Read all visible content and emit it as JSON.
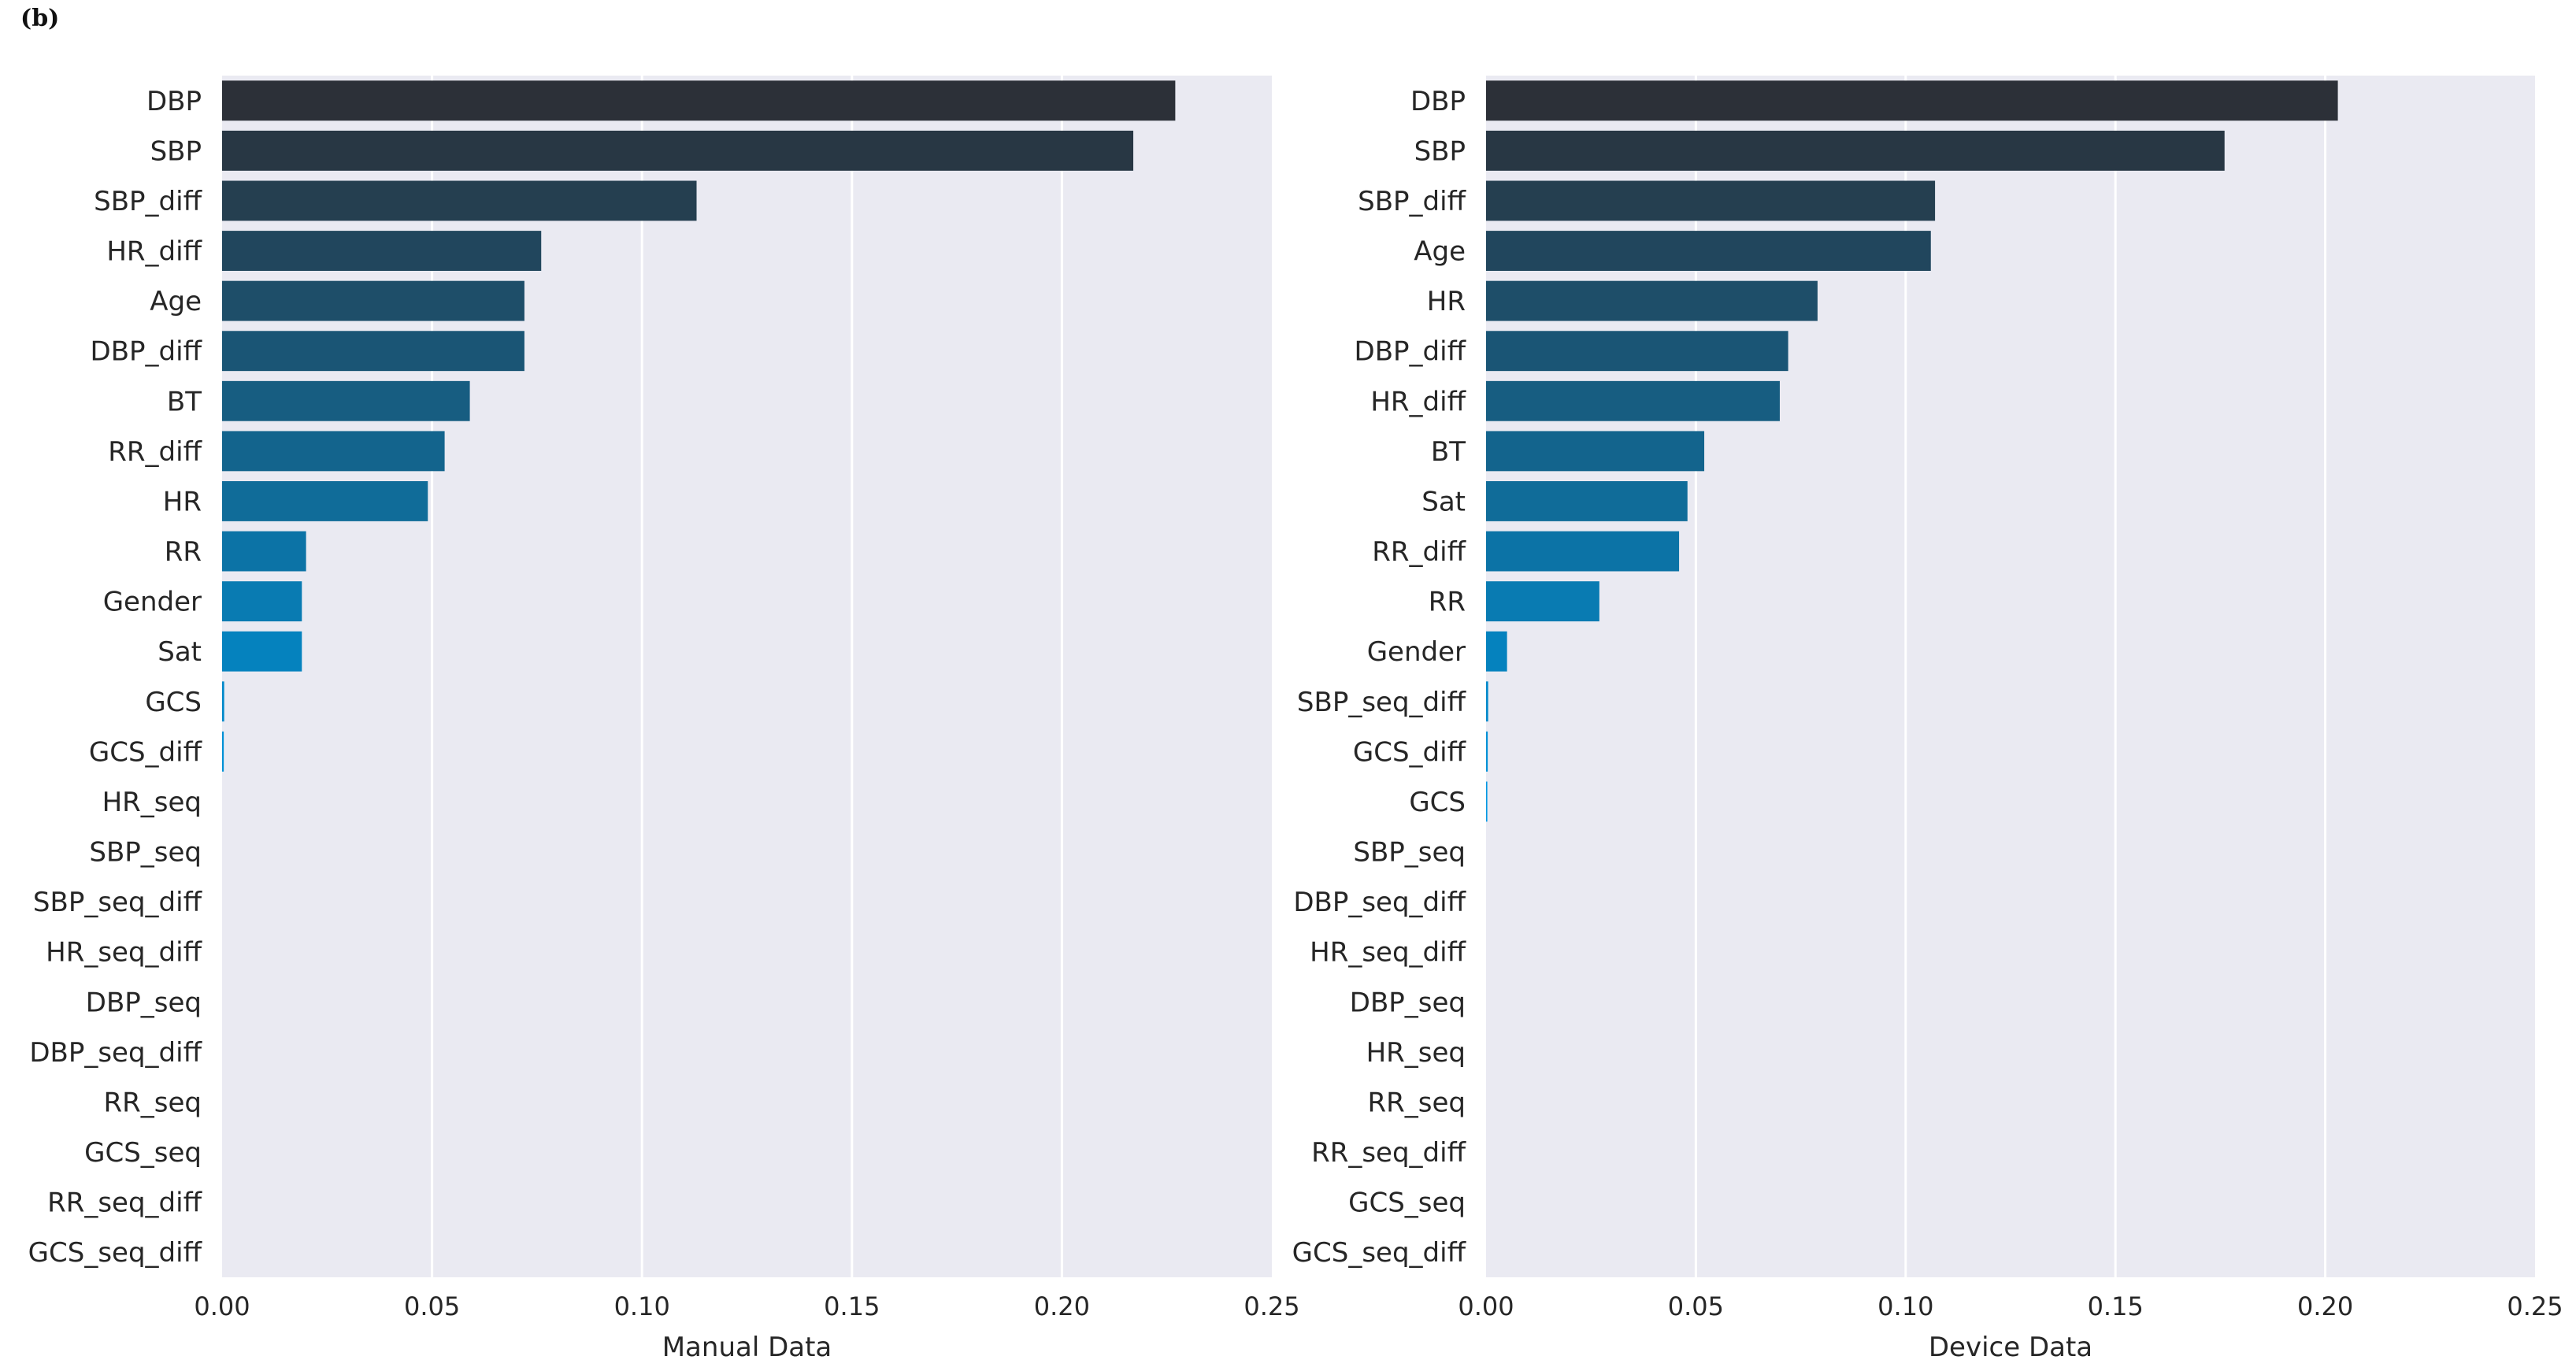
{
  "figure_label": "(b)",
  "chart_data": [
    {
      "type": "bar",
      "orientation": "horizontal",
      "xlabel": "Manual Data",
      "xlim": [
        0,
        0.25
      ],
      "xticks": [
        "0.00",
        "0.05",
        "0.10",
        "0.15",
        "0.20",
        "0.25"
      ],
      "categories": [
        "DBP",
        "SBP",
        "SBP_diff",
        "HR_diff",
        "Age",
        "DBP_diff",
        "BT",
        "RR_diff",
        "HR",
        "RR",
        "Gender",
        "Sat",
        "GCS",
        "GCS_diff",
        "HR_seq",
        "SBP_seq",
        "SBP_seq_diff",
        "HR_seq_diff",
        "DBP_seq",
        "DBP_seq_diff",
        "RR_seq",
        "GCS_seq",
        "RR_seq_diff",
        "GCS_seq_diff"
      ],
      "values": [
        0.227,
        0.217,
        0.113,
        0.076,
        0.072,
        0.072,
        0.059,
        0.053,
        0.049,
        0.02,
        0.019,
        0.019,
        0.0005,
        0.0004,
        0,
        0,
        0,
        0,
        0,
        0,
        0,
        0,
        0,
        0
      ],
      "grid": true
    },
    {
      "type": "bar",
      "orientation": "horizontal",
      "xlabel": "Device Data",
      "xlim": [
        0,
        0.25
      ],
      "xticks": [
        "0.00",
        "0.05",
        "0.10",
        "0.15",
        "0.20",
        "0.25"
      ],
      "categories": [
        "DBP",
        "SBP",
        "SBP_diff",
        "Age",
        "HR",
        "DBP_diff",
        "HR_diff",
        "BT",
        "Sat",
        "RR_diff",
        "RR",
        "Gender",
        "SBP_seq_diff",
        "GCS_diff",
        "GCS",
        "SBP_seq",
        "DBP_seq_diff",
        "HR_seq_diff",
        "DBP_seq",
        "HR_seq",
        "RR_seq",
        "RR_seq_diff",
        "GCS_seq",
        "GCS_seq_diff"
      ],
      "values": [
        0.203,
        0.176,
        0.107,
        0.106,
        0.079,
        0.072,
        0.07,
        0.052,
        0.048,
        0.046,
        0.027,
        0.005,
        0.0005,
        0.0004,
        0.0003,
        0,
        0,
        0,
        0,
        0,
        0,
        0,
        0,
        0
      ],
      "grid": true
    }
  ]
}
